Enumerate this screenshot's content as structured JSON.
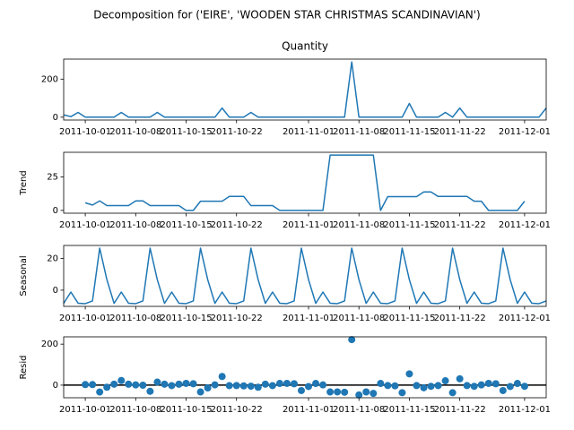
{
  "title": "Decomposition for ('EIRE', 'WOODEN STAR CHRISTMAS SCANDINAVIAN')",
  "chart_data": [
    {
      "type": "line",
      "title": "Quantity",
      "color": "#1f77b4",
      "x": [
        "2011-09-28",
        "2011-09-29",
        "2011-09-30",
        "2011-10-01",
        "2011-10-02",
        "2011-10-03",
        "2011-10-04",
        "2011-10-05",
        "2011-10-06",
        "2011-10-07",
        "2011-10-08",
        "2011-10-09",
        "2011-10-10",
        "2011-10-11",
        "2011-10-12",
        "2011-10-13",
        "2011-10-14",
        "2011-10-15",
        "2011-10-16",
        "2011-10-17",
        "2011-10-18",
        "2011-10-19",
        "2011-10-20",
        "2011-10-21",
        "2011-10-22",
        "2011-10-23",
        "2011-10-24",
        "2011-10-25",
        "2011-10-26",
        "2011-10-27",
        "2011-10-28",
        "2011-10-29",
        "2011-10-30",
        "2011-10-31",
        "2011-11-01",
        "2011-11-02",
        "2011-11-03",
        "2011-11-04",
        "2011-11-05",
        "2011-11-06",
        "2011-11-07",
        "2011-11-08",
        "2011-11-09",
        "2011-11-10",
        "2011-11-11",
        "2011-11-12",
        "2011-11-13",
        "2011-11-14",
        "2011-11-15",
        "2011-11-16",
        "2011-11-17",
        "2011-11-18",
        "2011-11-19",
        "2011-11-20",
        "2011-11-21",
        "2011-11-22",
        "2011-11-23",
        "2011-11-24",
        "2011-11-25",
        "2011-11-26",
        "2011-11-27",
        "2011-11-28",
        "2011-11-29",
        "2011-11-30",
        "2011-12-01",
        "2011-12-02",
        "2011-12-03",
        "2011-12-04"
      ],
      "values": [
        12,
        3,
        25,
        0,
        0,
        0,
        0,
        0,
        25,
        0,
        0,
        0,
        0,
        25,
        0,
        0,
        0,
        0,
        0,
        0,
        0,
        0,
        48,
        0,
        0,
        0,
        25,
        0,
        0,
        0,
        0,
        0,
        0,
        0,
        0,
        0,
        0,
        0,
        0,
        0,
        290,
        0,
        0,
        0,
        0,
        0,
        0,
        0,
        72,
        0,
        0,
        0,
        0,
        25,
        0,
        48,
        0,
        0,
        0,
        0,
        0,
        0,
        0,
        0,
        0,
        0,
        0,
        48
      ],
      "xlim": [
        "2011-09-28",
        "2011-12-04"
      ],
      "xticks": [
        "2011-10-01",
        "2011-10-08",
        "2011-10-15",
        "2011-10-22",
        "2011-11-01",
        "2011-11-08",
        "2011-11-15",
        "2011-11-22",
        "2011-12-01"
      ],
      "ylim": [
        -15,
        305
      ],
      "yticks": [
        0,
        200
      ]
    },
    {
      "type": "line",
      "ylabel": "Trend",
      "color": "#1f77b4",
      "x": [
        "2011-09-28",
        "2011-09-29",
        "2011-09-30",
        "2011-10-01",
        "2011-10-02",
        "2011-10-03",
        "2011-10-04",
        "2011-10-05",
        "2011-10-06",
        "2011-10-07",
        "2011-10-08",
        "2011-10-09",
        "2011-10-10",
        "2011-10-11",
        "2011-10-12",
        "2011-10-13",
        "2011-10-14",
        "2011-10-15",
        "2011-10-16",
        "2011-10-17",
        "2011-10-18",
        "2011-10-19",
        "2011-10-20",
        "2011-10-21",
        "2011-10-22",
        "2011-10-23",
        "2011-10-24",
        "2011-10-25",
        "2011-10-26",
        "2011-10-27",
        "2011-10-28",
        "2011-10-29",
        "2011-10-30",
        "2011-10-31",
        "2011-11-01",
        "2011-11-02",
        "2011-11-03",
        "2011-11-04",
        "2011-11-05",
        "2011-11-06",
        "2011-11-07",
        "2011-11-08",
        "2011-11-09",
        "2011-11-10",
        "2011-11-11",
        "2011-11-12",
        "2011-11-13",
        "2011-11-14",
        "2011-11-15",
        "2011-11-16",
        "2011-11-17",
        "2011-11-18",
        "2011-11-19",
        "2011-11-20",
        "2011-11-21",
        "2011-11-22",
        "2011-11-23",
        "2011-11-24",
        "2011-11-25",
        "2011-11-26",
        "2011-11-27",
        "2011-11-28",
        "2011-11-29",
        "2011-11-30",
        "2011-12-01",
        "2011-12-02",
        "2011-12-03",
        "2011-12-04"
      ],
      "values": [
        null,
        null,
        null,
        5.71,
        4.0,
        7.14,
        3.57,
        3.57,
        3.57,
        3.57,
        7.14,
        7.14,
        3.57,
        3.57,
        3.57,
        3.57,
        3.57,
        0,
        0,
        6.86,
        6.86,
        6.86,
        6.86,
        10.43,
        10.43,
        10.43,
        3.57,
        3.57,
        3.57,
        3.57,
        0,
        0,
        0,
        0,
        0,
        0,
        0,
        41.43,
        41.43,
        41.43,
        41.43,
        41.43,
        41.43,
        41.43,
        0,
        10.29,
        10.29,
        10.29,
        10.29,
        10.29,
        13.86,
        13.86,
        10.43,
        10.43,
        10.43,
        10.43,
        10.43,
        6.86,
        6.86,
        0,
        0,
        0,
        0,
        0,
        6.86,
        null,
        null,
        null
      ],
      "xlim": [
        "2011-09-28",
        "2011-12-04"
      ],
      "xticks": [
        "2011-10-01",
        "2011-10-08",
        "2011-10-15",
        "2011-10-22",
        "2011-11-01",
        "2011-11-08",
        "2011-11-15",
        "2011-11-22",
        "2011-12-01"
      ],
      "ylim": [
        -2.1,
        43.5
      ],
      "yticks": [
        0,
        25
      ]
    },
    {
      "type": "line",
      "ylabel": "Seasonal",
      "color": "#1f77b4",
      "x": [
        "2011-09-28",
        "2011-09-29",
        "2011-09-30",
        "2011-10-01",
        "2011-10-02",
        "2011-10-03",
        "2011-10-04",
        "2011-10-05",
        "2011-10-06",
        "2011-10-07",
        "2011-10-08",
        "2011-10-09",
        "2011-10-10",
        "2011-10-11",
        "2011-10-12",
        "2011-10-13",
        "2011-10-14",
        "2011-10-15",
        "2011-10-16",
        "2011-10-17",
        "2011-10-18",
        "2011-10-19",
        "2011-10-20",
        "2011-10-21",
        "2011-10-22",
        "2011-10-23",
        "2011-10-24",
        "2011-10-25",
        "2011-10-26",
        "2011-10-27",
        "2011-10-28",
        "2011-10-29",
        "2011-10-30",
        "2011-10-31",
        "2011-11-01",
        "2011-11-02",
        "2011-11-03",
        "2011-11-04",
        "2011-11-05",
        "2011-11-06",
        "2011-11-07",
        "2011-11-08",
        "2011-11-09",
        "2011-11-10",
        "2011-11-11",
        "2011-11-12",
        "2011-11-13",
        "2011-11-14",
        "2011-11-15",
        "2011-11-16",
        "2011-11-17",
        "2011-11-18",
        "2011-11-19",
        "2011-11-20",
        "2011-11-21",
        "2011-11-22",
        "2011-11-23",
        "2011-11-24",
        "2011-11-25",
        "2011-11-26",
        "2011-11-27",
        "2011-11-28",
        "2011-11-29",
        "2011-11-30",
        "2011-12-01",
        "2011-12-02",
        "2011-12-03",
        "2011-12-04"
      ],
      "values": [
        -8.3,
        -1.2,
        -8.2,
        -8.5,
        -6.8,
        26.4,
        6.6,
        -8.3,
        -1.2,
        -8.2,
        -8.5,
        -6.8,
        26.4,
        6.6,
        -8.3,
        -1.2,
        -8.2,
        -8.5,
        -6.8,
        26.4,
        6.6,
        -8.3,
        -1.2,
        -8.2,
        -8.5,
        -6.8,
        26.4,
        6.6,
        -8.3,
        -1.2,
        -8.2,
        -8.5,
        -6.8,
        26.4,
        6.6,
        -8.3,
        -1.2,
        -8.2,
        -8.5,
        -6.8,
        26.4,
        6.6,
        -8.3,
        -1.2,
        -8.2,
        -8.5,
        -6.8,
        26.4,
        6.6,
        -8.3,
        -1.2,
        -8.2,
        -8.5,
        -6.8,
        26.4,
        6.6,
        -8.3,
        -1.2,
        -8.2,
        -8.5,
        -6.8,
        26.4,
        6.6,
        -8.3,
        -1.2,
        -8.2,
        -8.5,
        -6.8
      ],
      "xlim": [
        "2011-09-28",
        "2011-12-04"
      ],
      "xticks": [
        "2011-10-01",
        "2011-10-08",
        "2011-10-15",
        "2011-10-22",
        "2011-11-01",
        "2011-11-08",
        "2011-11-15",
        "2011-11-22",
        "2011-12-01"
      ],
      "ylim": [
        -10.2,
        28.1
      ],
      "yticks": [
        0,
        20
      ]
    },
    {
      "type": "scatter",
      "ylabel": "Resid",
      "color": "#1f77b4",
      "x": [
        "2011-09-28",
        "2011-09-29",
        "2011-09-30",
        "2011-10-01",
        "2011-10-02",
        "2011-10-03",
        "2011-10-04",
        "2011-10-05",
        "2011-10-06",
        "2011-10-07",
        "2011-10-08",
        "2011-10-09",
        "2011-10-10",
        "2011-10-11",
        "2011-10-12",
        "2011-10-13",
        "2011-10-14",
        "2011-10-15",
        "2011-10-16",
        "2011-10-17",
        "2011-10-18",
        "2011-10-19",
        "2011-10-20",
        "2011-10-21",
        "2011-10-22",
        "2011-10-23",
        "2011-10-24",
        "2011-10-25",
        "2011-10-26",
        "2011-10-27",
        "2011-10-28",
        "2011-10-29",
        "2011-10-30",
        "2011-10-31",
        "2011-11-01",
        "2011-11-02",
        "2011-11-03",
        "2011-11-04",
        "2011-11-05",
        "2011-11-06",
        "2011-11-07",
        "2011-11-08",
        "2011-11-09",
        "2011-11-10",
        "2011-11-11",
        "2011-11-12",
        "2011-11-13",
        "2011-11-14",
        "2011-11-15",
        "2011-11-16",
        "2011-11-17",
        "2011-11-18",
        "2011-11-19",
        "2011-11-20",
        "2011-11-21",
        "2011-11-22",
        "2011-11-23",
        "2011-11-24",
        "2011-11-25",
        "2011-11-26",
        "2011-11-27",
        "2011-11-28",
        "2011-11-29",
        "2011-11-30",
        "2011-12-01",
        "2011-12-02",
        "2011-12-03",
        "2011-12-04"
      ],
      "values": [
        null,
        null,
        null,
        2.79,
        2.8,
        -33.54,
        -10.17,
        4.73,
        22.63,
        4.63,
        1.36,
        -0.34,
        -29.97,
        14.83,
        4.73,
        -2.37,
        4.63,
        8.5,
        6.8,
        -33.26,
        -13.46,
        1.44,
        42.34,
        -2.23,
        -1.93,
        -3.63,
        -4.97,
        -10.17,
        4.73,
        -2.37,
        8.2,
        8.5,
        6.8,
        -26.4,
        -6.6,
        8.3,
        1.2,
        -33.23,
        -32.93,
        -34.63,
        222.17,
        -48.03,
        -33.13,
        -40.23,
        8.2,
        -1.79,
        -3.49,
        -36.69,
        55.11,
        -1.99,
        -12.66,
        -5.66,
        -1.93,
        21.37,
        -36.83,
        30.97,
        -2.13,
        -5.66,
        1.34,
        8.5,
        6.8,
        -26.4,
        -6.6,
        8.3,
        -5.66,
        null,
        null,
        null
      ],
      "xlim": [
        "2011-09-28",
        "2011-12-04"
      ],
      "xticks": [
        "2011-10-01",
        "2011-10-08",
        "2011-10-15",
        "2011-10-22",
        "2011-11-01",
        "2011-11-08",
        "2011-11-15",
        "2011-11-22",
        "2011-12-01"
      ],
      "ylim": [
        -61.5,
        235.7
      ],
      "yticks": [
        0,
        200
      ]
    }
  ]
}
